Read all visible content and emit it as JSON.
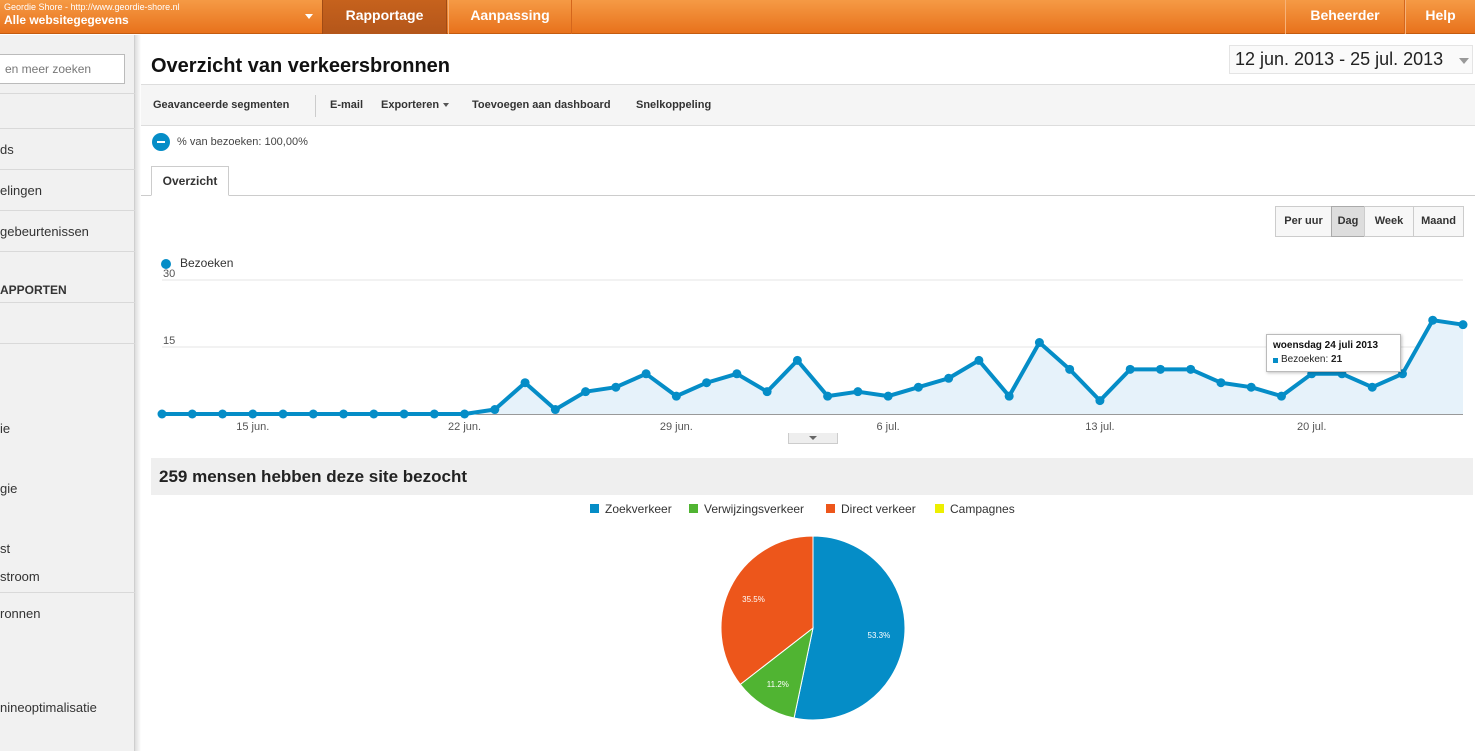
{
  "topbar": {
    "site_url": "Geordie Shore - http://www.geordie-shore.nl",
    "site_name": "Alle websitegegevens",
    "nav": {
      "rapportage": "Rapportage",
      "aanpassing": "Aanpassing",
      "beheerder": "Beheerder",
      "help": "Help"
    }
  },
  "sidebar": {
    "search_text": "en meer zoeken",
    "items": [
      "ds",
      "elingen",
      "gebeurtenissen",
      "APPORTEN",
      "ie",
      "gie",
      "st",
      "stroom",
      "ronnen",
      "nineoptimalisatie"
    ]
  },
  "header": {
    "title": "Overzicht van verkeersbronnen",
    "date_range": "12 jun. 2013 - 25 jul. 2013"
  },
  "toolbar": {
    "segments": "Geavanceerde segmenten",
    "email": "E-mail",
    "export": "Exporteren",
    "dashboard": "Toevoegen aan dashboard",
    "shortcut": "Snelkoppeling"
  },
  "segment_pct": "% van bezoeken: 100,00%",
  "tabs": {
    "overview": "Overzicht"
  },
  "granularity": {
    "hour": "Per uur",
    "day": "Dag",
    "week": "Week",
    "month": "Maand",
    "active": "Dag"
  },
  "tooltip": {
    "title": "woensdag 24 juli 2013",
    "label": "Bezoeken:",
    "value": "21"
  },
  "visitors_title": "259 mensen hebben deze site bezocht",
  "colors": {
    "search": "#058dc7",
    "referral": "#50b432",
    "direct": "#ed561b",
    "campaigns": "#edef00"
  },
  "chart_data": [
    {
      "type": "area",
      "series": [
        {
          "name": "Bezoeken",
          "values": [
            0,
            0,
            0,
            0,
            0,
            0,
            0,
            0,
            0,
            0,
            0,
            1,
            7,
            1,
            5,
            6,
            9,
            4,
            7,
            9,
            5,
            12,
            4,
            5,
            4,
            6,
            8,
            12,
            4,
            16,
            10,
            3,
            10,
            10,
            10,
            7,
            6,
            4,
            9,
            9,
            6,
            9,
            21,
            20
          ]
        }
      ],
      "x": [
        "12 jun.",
        "13 jun.",
        "14 jun.",
        "15 jun.",
        "16 jun.",
        "17 jun.",
        "18 jun.",
        "19 jun.",
        "20 jun.",
        "21 jun.",
        "22 jun.",
        "23 jun.",
        "24 jun.",
        "25 jun.",
        "26 jun.",
        "27 jun.",
        "28 jun.",
        "29 jun.",
        "30 jun.",
        "1 jul.",
        "2 jul.",
        "3 jul.",
        "4 jul.",
        "5 jul.",
        "6 jul.",
        "7 jul.",
        "8 jul.",
        "9 jul.",
        "10 jul.",
        "11 jul.",
        "12 jul.",
        "13 jul.",
        "14 jul.",
        "15 jul.",
        "16 jul.",
        "17 jul.",
        "18 jul.",
        "19 jul.",
        "20 jul.",
        "21 jul.",
        "22 jul.",
        "23 jul.",
        "24 jul.",
        "25 jul."
      ],
      "xticks": [
        {
          "label": "15 jun.",
          "index": 3
        },
        {
          "label": "22 jun.",
          "index": 10
        },
        {
          "label": "29 jun.",
          "index": 17
        },
        {
          "label": "6 jul.",
          "index": 24
        },
        {
          "label": "13 jul.",
          "index": 31
        },
        {
          "label": "20 jul.",
          "index": 38
        }
      ],
      "yticks": [
        15,
        30
      ],
      "ylim": [
        0,
        30
      ],
      "grid": true
    },
    {
      "type": "pie",
      "categories": [
        "Zoekverkeer",
        "Verwijzingsverkeer",
        "Direct verkeer",
        "Campagnes"
      ],
      "values": [
        53.3,
        11.2,
        35.5,
        0
      ],
      "labels": [
        "53.3%",
        "11.2%",
        "35.5%",
        ""
      ],
      "legend": "top"
    }
  ]
}
